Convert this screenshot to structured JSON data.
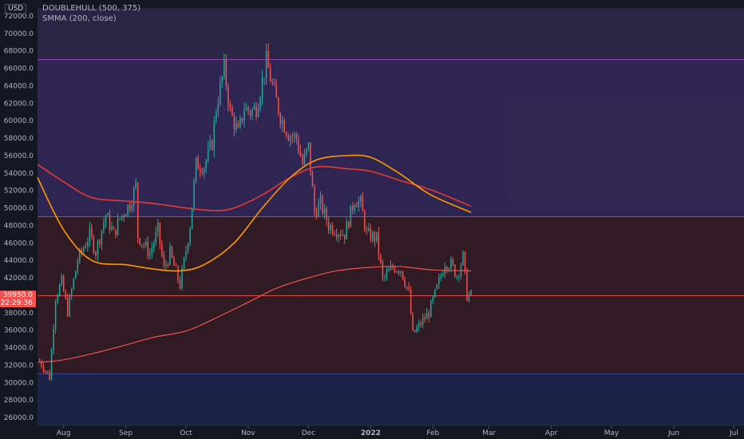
{
  "currency": "USD",
  "indicators": [
    "DOUBLEHULL (500, 375)",
    "SMMA (200, close)"
  ],
  "current_price": "39950.0",
  "countdown": "22:29:36",
  "colors": {
    "background": "#131722",
    "up": "#26a69a",
    "down": "#ef5350",
    "band_purple": "#8e44ad",
    "band_red": "#e53935",
    "band_blue": "#1a237e",
    "hull_fast": "#ff9800",
    "hull_slow": "#e53935",
    "smma": "#ef5350",
    "axis_text": "#b2b5be"
  },
  "chart_data": {
    "type": "candlestick",
    "y_ticks": [
      "26000.0",
      "28000.0",
      "30000.0",
      "32000.0",
      "34000.0",
      "36000.0",
      "38000.0",
      "40000.0",
      "42000.0",
      "44000.0",
      "46000.0",
      "48000.0",
      "50000.0",
      "52000.0",
      "54000.0",
      "56000.0",
      "58000.0",
      "60000.0",
      "62000.0",
      "64000.0",
      "66000.0",
      "68000.0",
      "70000.0",
      "72000.0"
    ],
    "x_ticks": [
      "Aug",
      "Sep",
      "Oct",
      "Nov",
      "Dec",
      "2022",
      "Feb",
      "Mar",
      "Apr",
      "May",
      "Jun",
      "Jul"
    ],
    "ylim": [
      25000,
      72900
    ],
    "x_start": "2021-07-19",
    "x_end": "2022-07-06",
    "bands": [
      {
        "from": 67000,
        "to": 72900,
        "color": "purple"
      },
      {
        "from": 49000,
        "to": 67000,
        "color": "purple"
      },
      {
        "from": 31000,
        "to": 49000,
        "color": "red"
      },
      {
        "from": 25000,
        "to": 31000,
        "color": "blue"
      }
    ],
    "levels": [
      67000,
      49000,
      39950,
      31000
    ],
    "close_anchors": [
      [
        "2021-07-20",
        32500
      ],
      [
        "2021-07-22",
        31800
      ],
      [
        "2021-07-25",
        30600
      ],
      [
        "2021-07-28",
        39800
      ],
      [
        "2021-07-31",
        41500
      ],
      [
        "2021-08-03",
        38200
      ],
      [
        "2021-08-08",
        44000
      ],
      [
        "2021-08-11",
        45500
      ],
      [
        "2021-08-14",
        47000
      ],
      [
        "2021-08-17",
        45000
      ],
      [
        "2021-08-22",
        49200
      ],
      [
        "2021-08-26",
        47000
      ],
      [
        "2021-08-29",
        48800
      ],
      [
        "2021-09-03",
        50500
      ],
      [
        "2021-09-06",
        52500
      ],
      [
        "2021-09-07",
        46800
      ],
      [
        "2021-09-13",
        44800
      ],
      [
        "2021-09-17",
        47500
      ],
      [
        "2021-09-20",
        43000
      ],
      [
        "2021-09-23",
        44800
      ],
      [
        "2021-09-28",
        41200
      ],
      [
        "2021-09-30",
        43800
      ],
      [
        "2021-10-03",
        48000
      ],
      [
        "2021-10-06",
        55000
      ],
      [
        "2021-10-10",
        54800
      ],
      [
        "2021-10-14",
        57500
      ],
      [
        "2021-10-16",
        61500
      ],
      [
        "2021-10-20",
        66000
      ],
      [
        "2021-10-23",
        61000
      ],
      [
        "2021-10-27",
        58500
      ],
      [
        "2021-10-30",
        61500
      ],
      [
        "2021-11-02",
        61000
      ],
      [
        "2021-11-05",
        61500
      ],
      [
        "2021-11-08",
        64500
      ],
      [
        "2021-11-10",
        66800
      ],
      [
        "2021-11-13",
        64000
      ],
      [
        "2021-11-17",
        60500
      ],
      [
        "2021-11-21",
        58500
      ],
      [
        "2021-11-25",
        58000
      ],
      [
        "2021-11-28",
        55000
      ],
      [
        "2021-12-01",
        57000
      ],
      [
        "2021-12-04",
        49500
      ],
      [
        "2021-12-07",
        50500
      ],
      [
        "2021-12-11",
        48000
      ],
      [
        "2021-12-15",
        47500
      ],
      [
        "2021-12-19",
        47000
      ],
      [
        "2021-12-24",
        51000
      ],
      [
        "2021-12-27",
        50500
      ],
      [
        "2021-12-30",
        47000
      ],
      [
        "2022-01-04",
        46500
      ],
      [
        "2022-01-07",
        41800
      ],
      [
        "2022-01-12",
        43200
      ],
      [
        "2022-01-16",
        43000
      ],
      [
        "2022-01-20",
        40200
      ],
      [
        "2022-01-22",
        35500
      ],
      [
        "2022-01-26",
        36800
      ],
      [
        "2022-01-30",
        38000
      ],
      [
        "2022-02-04",
        41500
      ],
      [
        "2022-02-07",
        43800
      ],
      [
        "2022-02-10",
        43500
      ],
      [
        "2022-02-13",
        42300
      ],
      [
        "2022-02-16",
        44400
      ],
      [
        "2022-02-18",
        40000
      ],
      [
        "2022-02-20",
        39950
      ]
    ],
    "hull_fast": [
      [
        "2021-07-19",
        53500
      ],
      [
        "2021-08-01",
        47500
      ],
      [
        "2021-08-15",
        44000
      ],
      [
        "2021-09-01",
        43500
      ],
      [
        "2021-09-15",
        43000
      ],
      [
        "2021-09-28",
        42800
      ],
      [
        "2021-10-10",
        43500
      ],
      [
        "2021-10-25",
        46000
      ],
      [
        "2021-11-08",
        50000
      ],
      [
        "2021-11-22",
        53500
      ],
      [
        "2021-12-05",
        55500
      ],
      [
        "2021-12-20",
        56000
      ],
      [
        "2022-01-01",
        55800
      ],
      [
        "2022-01-15",
        54000
      ],
      [
        "2022-01-31",
        51500
      ],
      [
        "2022-02-20",
        49500
      ]
    ],
    "hull_slow": [
      [
        "2021-07-19",
        55000
      ],
      [
        "2021-08-01",
        53000
      ],
      [
        "2021-08-15",
        51200
      ],
      [
        "2021-09-01",
        50800
      ],
      [
        "2021-09-15",
        50500
      ],
      [
        "2021-10-01",
        50000
      ],
      [
        "2021-10-15",
        49700
      ],
      [
        "2021-10-25",
        50000
      ],
      [
        "2021-11-08",
        51500
      ],
      [
        "2021-11-22",
        53500
      ],
      [
        "2021-12-05",
        54700
      ],
      [
        "2021-12-20",
        54500
      ],
      [
        "2022-01-01",
        54200
      ],
      [
        "2022-01-15",
        53200
      ],
      [
        "2022-02-01",
        52000
      ],
      [
        "2022-02-20",
        50200
      ]
    ],
    "smma": [
      [
        "2021-07-19",
        32300
      ],
      [
        "2021-08-01",
        32600
      ],
      [
        "2021-08-15",
        33300
      ],
      [
        "2021-09-01",
        34300
      ],
      [
        "2021-09-15",
        35200
      ],
      [
        "2021-10-01",
        35900
      ],
      [
        "2021-10-15",
        37300
      ],
      [
        "2021-11-01",
        39200
      ],
      [
        "2021-11-15",
        40800
      ],
      [
        "2021-12-01",
        42000
      ],
      [
        "2021-12-15",
        42800
      ],
      [
        "2022-01-01",
        43200
      ],
      [
        "2022-01-15",
        43300
      ],
      [
        "2022-02-01",
        42900
      ],
      [
        "2022-02-20",
        42800
      ]
    ]
  }
}
